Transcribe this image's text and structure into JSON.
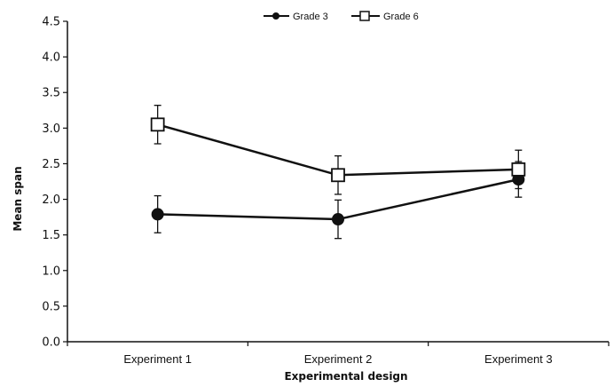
{
  "chart_data": {
    "type": "line",
    "title": "",
    "xlabel": "Experimental design",
    "ylabel": "Mean span",
    "categories": [
      "Experiment 1",
      "Experiment 2",
      "Experiment 3"
    ],
    "ylim": [
      0,
      4.5
    ],
    "yticks": [
      "0.0",
      "0.5",
      "1.0",
      "1.5",
      "2.0",
      "2.5",
      "3.0",
      "3.5",
      "4.0",
      "4.5"
    ],
    "grid": false,
    "legend_position": "top-center",
    "series": [
      {
        "name": "Grade 3",
        "marker": "filled-circle",
        "color": "#111111",
        "values": [
          1.79,
          1.72,
          2.28
        ],
        "error": [
          0.26,
          0.27,
          0.25
        ]
      },
      {
        "name": "Grade 6",
        "marker": "open-square",
        "color": "#111111",
        "values": [
          3.05,
          2.34,
          2.42
        ],
        "error": [
          0.27,
          0.27,
          0.27
        ]
      }
    ]
  }
}
